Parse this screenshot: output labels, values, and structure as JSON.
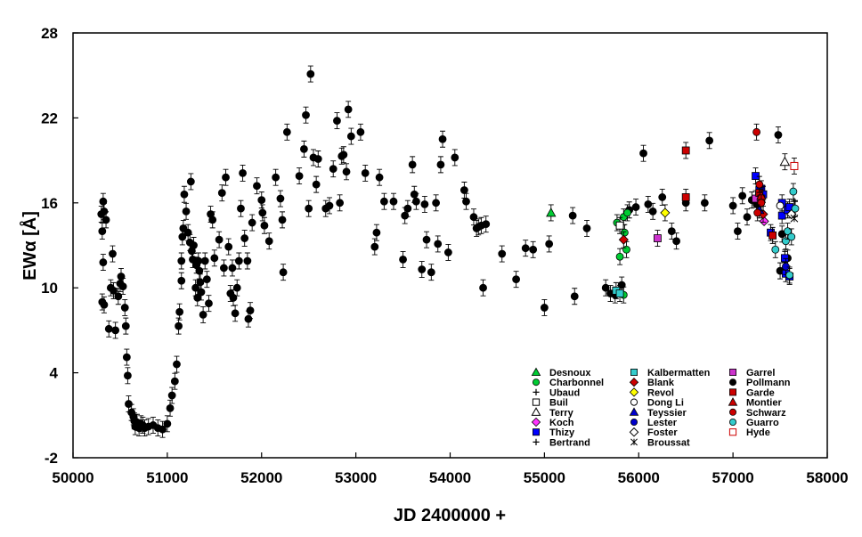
{
  "chart_data": {
    "type": "scatter",
    "title": "",
    "xlabel": "JD 2400000 +",
    "ylabel": "EWα [Å]",
    "xlim": [
      50000,
      58000
    ],
    "ylim": [
      -2,
      28
    ],
    "xticks": [
      50000,
      51000,
      52000,
      53000,
      54000,
      55000,
      56000,
      57000,
      58000
    ],
    "yticks": [
      -2,
      4,
      10,
      16,
      22,
      28
    ],
    "grid": false,
    "legend_placement": "bottom-right",
    "series": [
      {
        "name": "Pollmann",
        "marker": "circle",
        "color": "#000000",
        "errorbars": true,
        "points": [
          [
            50300,
            15.2
          ],
          [
            50310,
            14.0
          ],
          [
            50320,
            16.1
          ],
          [
            50330,
            15.4
          ],
          [
            50350,
            14.8
          ],
          [
            50320,
            11.8
          ],
          [
            50310,
            9.0
          ],
          [
            50330,
            8.8
          ],
          [
            50380,
            7.1
          ],
          [
            50400,
            10.0
          ],
          [
            50420,
            12.4
          ],
          [
            50430,
            9.8
          ],
          [
            50450,
            7.0
          ],
          [
            50480,
            9.4
          ],
          [
            50500,
            10.3
          ],
          [
            50510,
            10.8
          ],
          [
            50530,
            10.1
          ],
          [
            50550,
            8.6
          ],
          [
            50560,
            7.3
          ],
          [
            50570,
            5.1
          ],
          [
            50580,
            3.8
          ],
          [
            50590,
            1.8
          ],
          [
            50620,
            1.2
          ],
          [
            50640,
            0.9
          ],
          [
            50650,
            0.6
          ],
          [
            50660,
            0.2
          ],
          [
            50680,
            0.5
          ],
          [
            50700,
            0.1
          ],
          [
            50720,
            0.4
          ],
          [
            50740,
            0.3
          ],
          [
            50760,
            0.1
          ],
          [
            50800,
            0.2
          ],
          [
            50850,
            0.3
          ],
          [
            50900,
            0.1
          ],
          [
            50950,
            0.0
          ],
          [
            51000,
            0.4
          ],
          [
            51030,
            1.5
          ],
          [
            51050,
            2.4
          ],
          [
            51080,
            3.4
          ],
          [
            51100,
            4.6
          ],
          [
            51120,
            7.3
          ],
          [
            51130,
            8.3
          ],
          [
            51150,
            10.5
          ],
          [
            51150,
            11.9
          ],
          [
            51160,
            13.6
          ],
          [
            51170,
            14.2
          ],
          [
            51180,
            16.6
          ],
          [
            51200,
            15.4
          ],
          [
            51220,
            13.9
          ],
          [
            51240,
            13.2
          ],
          [
            51250,
            17.5
          ],
          [
            51260,
            12.6
          ],
          [
            51270,
            12.0
          ],
          [
            51280,
            13.0
          ],
          [
            51300,
            10.0
          ],
          [
            51310,
            11.6
          ],
          [
            51320,
            9.3
          ],
          [
            51330,
            11.9
          ],
          [
            51340,
            11.2
          ],
          [
            51350,
            10.4
          ],
          [
            51360,
            9.7
          ],
          [
            51380,
            8.1
          ],
          [
            51400,
            11.9
          ],
          [
            51420,
            10.6
          ],
          [
            51440,
            8.9
          ],
          [
            51460,
            15.2
          ],
          [
            51480,
            14.8
          ],
          [
            51500,
            12.1
          ],
          [
            51550,
            13.4
          ],
          [
            51580,
            16.7
          ],
          [
            51600,
            11.4
          ],
          [
            51620,
            17.8
          ],
          [
            51650,
            12.9
          ],
          [
            51670,
            9.6
          ],
          [
            51690,
            11.4
          ],
          [
            51700,
            9.3
          ],
          [
            51720,
            8.2
          ],
          [
            51740,
            10.0
          ],
          [
            51760,
            11.9
          ],
          [
            51780,
            15.6
          ],
          [
            51800,
            18.1
          ],
          [
            51820,
            13.5
          ],
          [
            51850,
            11.9
          ],
          [
            51860,
            7.8
          ],
          [
            51880,
            8.4
          ],
          [
            51900,
            14.6
          ],
          [
            51950,
            17.2
          ],
          [
            52000,
            16.2
          ],
          [
            52010,
            15.3
          ],
          [
            52030,
            14.4
          ],
          [
            52080,
            13.3
          ],
          [
            52150,
            17.8
          ],
          [
            52200,
            16.3
          ],
          [
            52220,
            14.8
          ],
          [
            52230,
            11.1
          ],
          [
            52270,
            21.0
          ],
          [
            52400,
            17.9
          ],
          [
            52450,
            19.8
          ],
          [
            52470,
            22.2
          ],
          [
            52500,
            15.6
          ],
          [
            52520,
            25.1
          ],
          [
            52550,
            19.2
          ],
          [
            52580,
            17.3
          ],
          [
            52600,
            19.1
          ],
          [
            52680,
            15.6
          ],
          [
            52720,
            15.8
          ],
          [
            52760,
            18.4
          ],
          [
            52800,
            21.8
          ],
          [
            52830,
            16.0
          ],
          [
            52850,
            19.3
          ],
          [
            52870,
            19.4
          ],
          [
            52900,
            18.2
          ],
          [
            52920,
            22.6
          ],
          [
            52950,
            20.7
          ],
          [
            53050,
            21.0
          ],
          [
            53100,
            18.1
          ],
          [
            53200,
            12.9
          ],
          [
            53220,
            13.9
          ],
          [
            53250,
            17.8
          ],
          [
            53300,
            16.1
          ],
          [
            53400,
            16.1
          ],
          [
            53500,
            12.0
          ],
          [
            53520,
            15.1
          ],
          [
            53550,
            15.6
          ],
          [
            53600,
            18.7
          ],
          [
            53620,
            16.6
          ],
          [
            53640,
            16.1
          ],
          [
            53700,
            11.3
          ],
          [
            53730,
            15.9
          ],
          [
            53750,
            13.4
          ],
          [
            53800,
            11.1
          ],
          [
            53850,
            16.0
          ],
          [
            53870,
            13.1
          ],
          [
            53900,
            18.7
          ],
          [
            53920,
            20.5
          ],
          [
            53980,
            12.5
          ],
          [
            54050,
            19.2
          ],
          [
            54150,
            16.9
          ],
          [
            54170,
            16.1
          ],
          [
            54250,
            15.0
          ],
          [
            54280,
            14.2
          ],
          [
            54300,
            14.3
          ],
          [
            54330,
            14.4
          ],
          [
            54350,
            10.0
          ],
          [
            54380,
            14.5
          ],
          [
            54550,
            12.4
          ],
          [
            54700,
            10.6
          ],
          [
            54800,
            12.8
          ],
          [
            54880,
            12.7
          ],
          [
            55000,
            8.6
          ],
          [
            55050,
            13.1
          ],
          [
            55300,
            15.1
          ],
          [
            55320,
            9.4
          ],
          [
            55450,
            14.2
          ],
          [
            55650,
            10.0
          ],
          [
            55700,
            9.6
          ],
          [
            55750,
            9.5
          ],
          [
            55820,
            10.2
          ],
          [
            55900,
            15.5
          ],
          [
            55970,
            15.7
          ],
          [
            56050,
            19.5
          ],
          [
            56100,
            15.9
          ],
          [
            56150,
            15.4
          ],
          [
            56250,
            16.4
          ],
          [
            56350,
            14.0
          ],
          [
            56400,
            13.3
          ],
          [
            56500,
            16.0
          ],
          [
            56700,
            16.0
          ],
          [
            56750,
            20.4
          ],
          [
            57000,
            15.8
          ],
          [
            57050,
            14.0
          ],
          [
            57100,
            16.5
          ],
          [
            57150,
            15.0
          ],
          [
            57200,
            16.2
          ],
          [
            57250,
            15.9
          ],
          [
            57480,
            20.8
          ],
          [
            57500,
            11.2
          ],
          [
            57520,
            13.8
          ],
          [
            57550,
            12.0
          ],
          [
            57580,
            12.1
          ]
        ]
      },
      {
        "name": "Desnoux",
        "marker": "triangle-filled",
        "color": "#00cc33",
        "errorbars": true,
        "points": [
          [
            55070,
            15.3
          ]
        ]
      },
      {
        "name": "Charbonnel",
        "marker": "circle",
        "color": "#00cc33",
        "errorbars": true,
        "points": [
          [
            55770,
            14.6
          ],
          [
            55800,
            12.2
          ],
          [
            55840,
            15.0
          ],
          [
            55850,
            13.9
          ],
          [
            55870,
            12.7
          ],
          [
            55880,
            15.3
          ],
          [
            55840,
            9.5
          ]
        ]
      },
      {
        "name": "Ubaud",
        "marker": "plus",
        "color": "#000000",
        "errorbars": false,
        "points": [
          [
            57600,
            15.5
          ]
        ]
      },
      {
        "name": "Buil",
        "marker": "square-open",
        "color": "#000000",
        "errorbars": true,
        "points": [
          [
            55800,
            14.4
          ]
        ]
      },
      {
        "name": "Terry",
        "marker": "triangle-open",
        "color": "#000000",
        "errorbars": true,
        "points": [
          [
            57550,
            18.9
          ]
        ]
      },
      {
        "name": "Koch",
        "marker": "diamond",
        "color": "#ff33ff",
        "errorbars": false,
        "points": [
          [
            57330,
            14.7
          ]
        ]
      },
      {
        "name": "Thizy",
        "marker": "square",
        "color": "#0000ff",
        "errorbars": true,
        "points": [
          [
            57240,
            17.9
          ],
          [
            57280,
            16.9
          ],
          [
            57300,
            17.0
          ],
          [
            57320,
            16.6
          ],
          [
            57400,
            13.9
          ],
          [
            57520,
            15.1
          ],
          [
            57550,
            12.1
          ],
          [
            57560,
            11.0
          ],
          [
            57580,
            15.5
          ],
          [
            57600,
            10.8
          ],
          [
            57600,
            15.7
          ],
          [
            57520,
            16.0
          ]
        ]
      },
      {
        "name": "Bertrand",
        "marker": "plus",
        "color": "#000000",
        "errorbars": false,
        "points": [
          [
            57650,
            16.1
          ]
        ]
      },
      {
        "name": "Kalbermatten",
        "marker": "square",
        "color": "#33cccc",
        "errorbars": true,
        "points": [
          [
            55760,
            9.8
          ],
          [
            55800,
            9.6
          ]
        ]
      },
      {
        "name": "Blank",
        "marker": "diamond",
        "color": "#cc0000",
        "errorbars": true,
        "points": [
          [
            55840,
            13.4
          ],
          [
            57320,
            15.2
          ]
        ]
      },
      {
        "name": "Revol",
        "marker": "diamond",
        "color": "#ffff00",
        "errorbars": true,
        "points": [
          [
            56280,
            15.3
          ]
        ]
      },
      {
        "name": "Dong Li",
        "marker": "circle-open",
        "color": "#000000",
        "errorbars": false,
        "points": [
          [
            57500,
            15.8
          ]
        ]
      },
      {
        "name": "Teyssier",
        "marker": "triangle-filled",
        "color": "#0000cc",
        "errorbars": true,
        "points": [
          [
            57280,
            15.5
          ]
        ]
      },
      {
        "name": "Lester",
        "marker": "circle",
        "color": "#0000cc",
        "errorbars": true,
        "points": [
          [
            57560,
            11.5
          ]
        ]
      },
      {
        "name": "Foster",
        "marker": "diamond-open",
        "color": "#000000",
        "errorbars": false,
        "points": [
          [
            57620,
            15.2
          ]
        ]
      },
      {
        "name": "Broussat",
        "marker": "asterisk",
        "color": "#000000",
        "errorbars": false,
        "points": [
          [
            57650,
            14.9
          ]
        ]
      },
      {
        "name": "Garrel",
        "marker": "square",
        "color": "#cc33cc",
        "errorbars": true,
        "points": [
          [
            56200,
            13.5
          ],
          [
            57240,
            16.3
          ]
        ]
      },
      {
        "name": "Garde",
        "marker": "square",
        "color": "#cc0000",
        "errorbars": true,
        "points": [
          [
            56500,
            19.7
          ],
          [
            56500,
            16.4
          ],
          [
            57280,
            16.7
          ],
          [
            57300,
            16.3
          ],
          [
            57420,
            13.7
          ]
        ]
      },
      {
        "name": "Montier",
        "marker": "triangle-filled",
        "color": "#cc0000",
        "errorbars": true,
        "points": [
          [
            57300,
            16.5
          ]
        ]
      },
      {
        "name": "Schwarz",
        "marker": "circle",
        "color": "#cc0000",
        "errorbars": true,
        "points": [
          [
            57250,
            21.0
          ],
          [
            57280,
            17.3
          ],
          [
            57300,
            16.0
          ],
          [
            57260,
            15.3
          ]
        ]
      },
      {
        "name": "Guarro",
        "marker": "circle",
        "color": "#33cccc",
        "errorbars": true,
        "points": [
          [
            57450,
            12.7
          ],
          [
            57560,
            13.3
          ],
          [
            57580,
            14.0
          ],
          [
            57600,
            10.9
          ],
          [
            57620,
            13.6
          ],
          [
            57640,
            16.8
          ],
          [
            57660,
            15.6
          ]
        ]
      },
      {
        "name": "Hyde",
        "marker": "square-open",
        "color": "#cc0000",
        "errorbars": true,
        "points": [
          [
            57650,
            18.6
          ]
        ]
      }
    ],
    "legend_columns": [
      [
        "Desnoux",
        "Charbonnel",
        "Ubaud",
        "Buil",
        "Terry",
        "Koch",
        "Thizy",
        "Bertrand"
      ],
      [
        "Kalbermatten",
        "Blank",
        "Revol",
        "Dong Li",
        "Teyssier",
        "Lester",
        "Foster",
        "Broussat"
      ],
      [
        "Garrel",
        "Pollmann",
        "Garde",
        "Montier",
        "Schwarz",
        "Guarro",
        "Hyde"
      ]
    ]
  }
}
